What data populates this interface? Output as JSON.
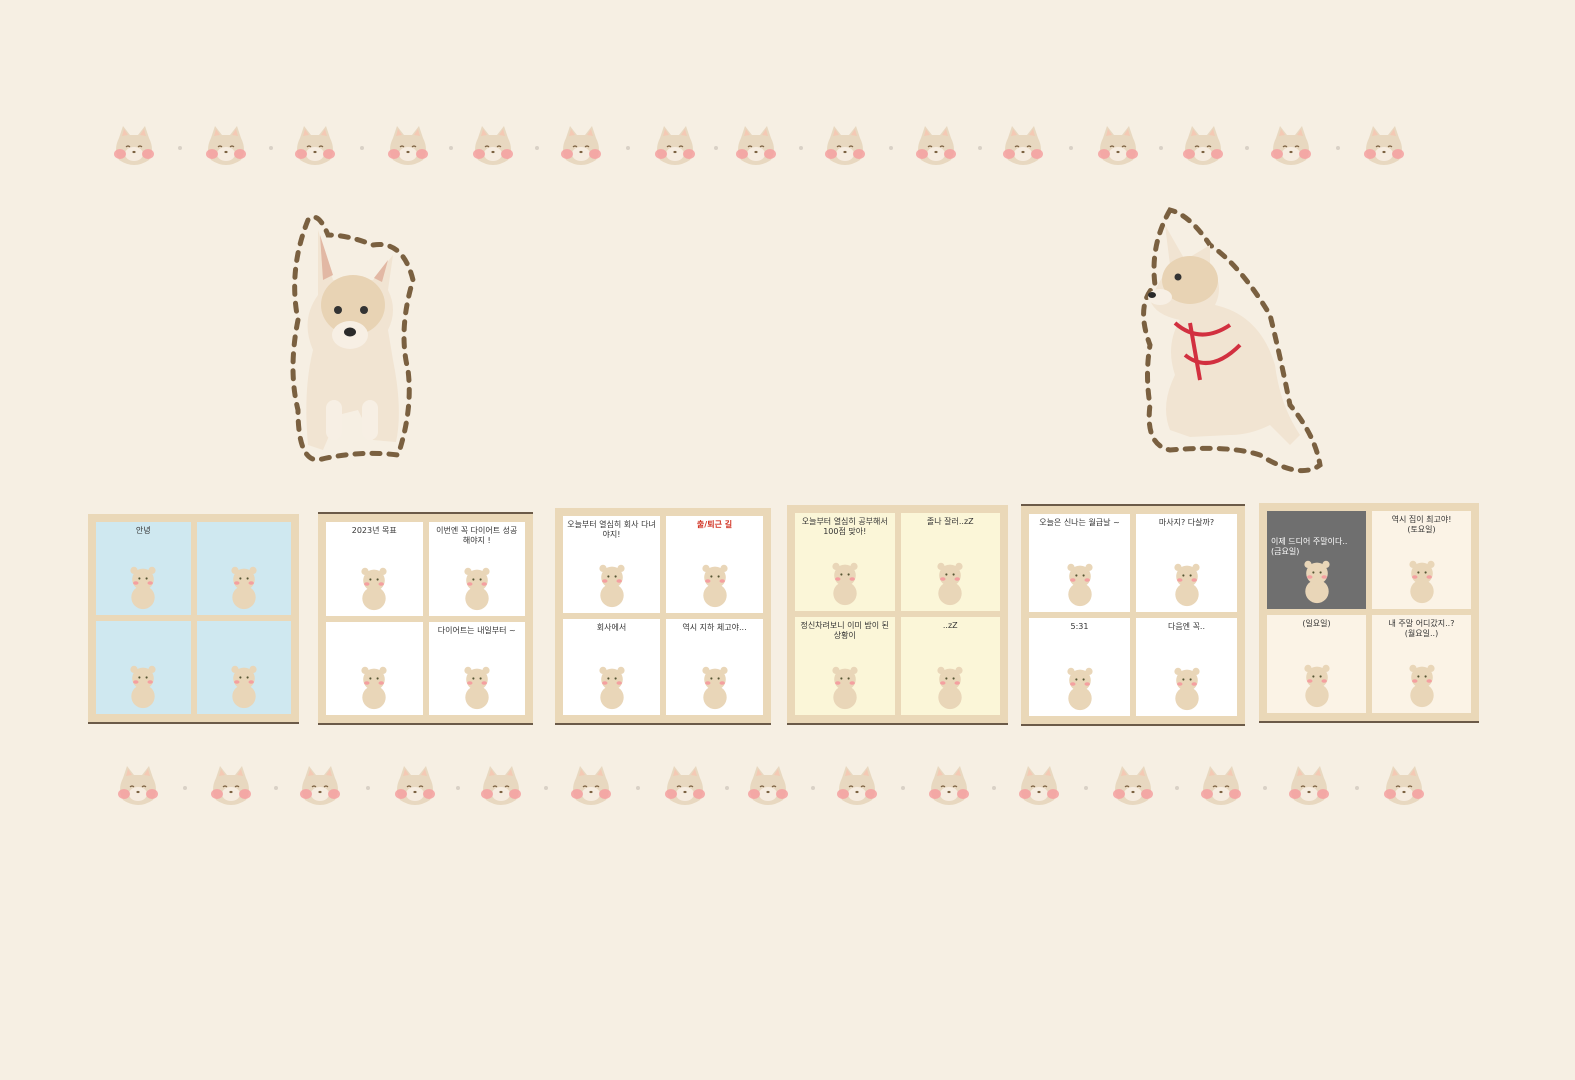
{
  "decor": {
    "top_faces": 15,
    "bottom_faces": 15,
    "face_icon": "shiba-face-icon",
    "colors": {
      "background": "#f6efe3",
      "face": "#e8d8c0",
      "blush": "#f4a0a0",
      "outline": "#7a6040"
    }
  },
  "photos": [
    {
      "icon": "puppy-front-photo"
    },
    {
      "icon": "puppy-side-photo"
    }
  ],
  "comics": [
    {
      "title_icon": "comic-1",
      "cells": [
        {
          "caption": "안녕"
        },
        {
          "caption": ""
        },
        {
          "caption": ""
        },
        {
          "caption": ""
        }
      ]
    },
    {
      "title_icon": "comic-2",
      "cells": [
        {
          "caption": "2023년 목표"
        },
        {
          "caption": "이번엔 꼭 다이어트 성공해야지 !"
        },
        {
          "caption": ""
        },
        {
          "caption": "다이어트는 내일부터 ~"
        }
      ]
    },
    {
      "title_icon": "comic-3",
      "cells": [
        {
          "caption": "오늘부터 열심히 회사 다녀야지!"
        },
        {
          "caption": "출/퇴근 길"
        },
        {
          "caption": "회사에서"
        },
        {
          "caption": "역시 지하 체고야..."
        }
      ]
    },
    {
      "title_icon": "comic-4",
      "cells": [
        {
          "caption": "오늘부터 열심히 공부해서\n100점 맞아!"
        },
        {
          "caption": "졸나 잘러..zZ"
        },
        {
          "caption": "정신차려보니 이미 밤이 된 상황이"
        },
        {
          "caption": "..zZ"
        }
      ]
    },
    {
      "title_icon": "comic-5",
      "cells": [
        {
          "caption": "오늘은 신나는 월급날 ~"
        },
        {
          "caption": "마사지? 다살까?"
        },
        {
          "caption": "5:31"
        },
        {
          "caption": "다음엔 꼭.."
        }
      ]
    },
    {
      "title_icon": "comic-6",
      "cells": [
        {
          "caption": "이제 드디어 주말이다..\n(금요일)"
        },
        {
          "caption": "역시 집이 최고야!\n(토요일)"
        },
        {
          "caption": "(일요일)"
        },
        {
          "caption": "내 주말 어디갔지..?\n(월요일..)"
        }
      ]
    }
  ]
}
